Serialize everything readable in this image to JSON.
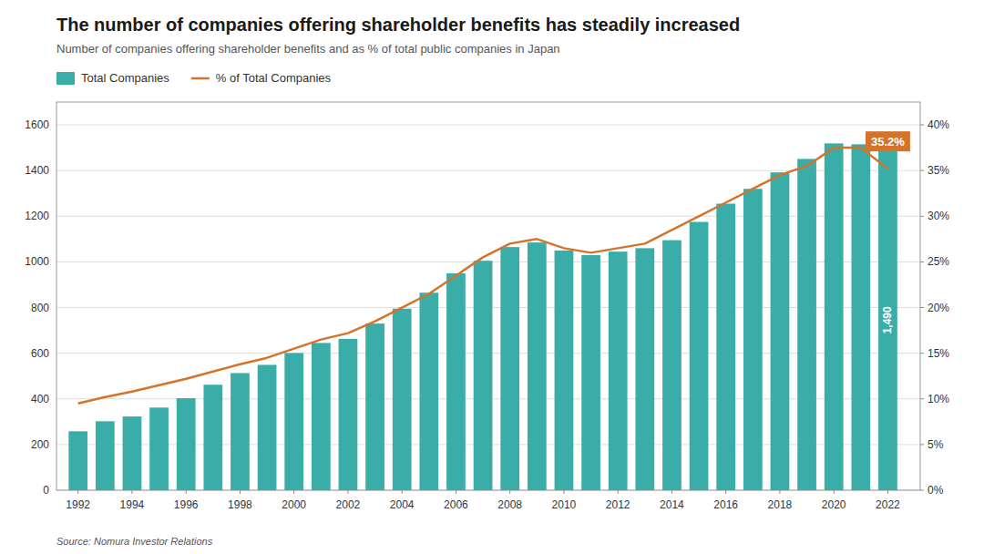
{
  "chart_data": {
    "type": "bar",
    "title": "The number of companies offering shareholder benefits has steadily increased",
    "subtitle": "Number of companies offering shareholder benefits and as % of total public companies in Japan",
    "source": "Source: Nomura Investor Relations",
    "x": [
      1992,
      1993,
      1994,
      1995,
      1996,
      1997,
      1998,
      1999,
      2000,
      2001,
      2002,
      2003,
      2004,
      2005,
      2006,
      2007,
      2008,
      2009,
      2010,
      2011,
      2012,
      2013,
      2014,
      2015,
      2016,
      2017,
      2018,
      2019,
      2020,
      2021,
      2022
    ],
    "series": [
      {
        "name": "Total Companies",
        "type": "bar",
        "color": "#3aada8",
        "values": [
          258,
          302,
          323,
          362,
          403,
          462,
          513,
          549,
          601,
          645,
          663,
          730,
          795,
          865,
          950,
          1005,
          1065,
          1085,
          1050,
          1030,
          1045,
          1060,
          1095,
          1175,
          1255,
          1320,
          1392,
          1451,
          1519,
          1515,
          1490
        ]
      },
      {
        "name": "% of Total Companies",
        "type": "line",
        "color": "#d4732a",
        "axis": "y2",
        "values": [
          9.5,
          10.2,
          10.8,
          11.5,
          12.2,
          13.0,
          13.8,
          14.5,
          15.5,
          16.5,
          17.2,
          18.5,
          20.0,
          21.5,
          23.5,
          25.5,
          27.0,
          27.5,
          26.5,
          26.0,
          26.5,
          27.0,
          28.5,
          30.0,
          31.5,
          33.0,
          34.5,
          35.5,
          37.5,
          37.5,
          35.2
        ]
      }
    ],
    "xlim": [
      1991.2,
      2023.2
    ],
    "xticks": [
      1992,
      1994,
      1996,
      1998,
      2000,
      2002,
      2004,
      2006,
      2008,
      2010,
      2012,
      2014,
      2016,
      2018,
      2020,
      2022
    ],
    "ylim": [
      0,
      1700
    ],
    "yticks": [
      0,
      200,
      400,
      600,
      800,
      1000,
      1200,
      1400,
      1600
    ],
    "y2lim": [
      0,
      42.5
    ],
    "y2ticks": [
      {
        "value": 0,
        "label": "0%"
      },
      {
        "value": 5,
        "label": "5%"
      },
      {
        "value": 10,
        "label": "10%"
      },
      {
        "value": 15,
        "label": "15%"
      },
      {
        "value": 20,
        "label": "20%"
      },
      {
        "value": 25,
        "label": "25%"
      },
      {
        "value": 30,
        "label": "30%"
      },
      {
        "value": 35,
        "label": "35%"
      },
      {
        "value": 40,
        "label": "40%"
      }
    ],
    "grid": true,
    "legend": "top",
    "annotations": [
      {
        "text": "1,490",
        "x": 2022,
        "value": 1490
      },
      {
        "text": "35.2%",
        "x": 2022,
        "value": 35.2,
        "axis": "y2"
      }
    ]
  }
}
